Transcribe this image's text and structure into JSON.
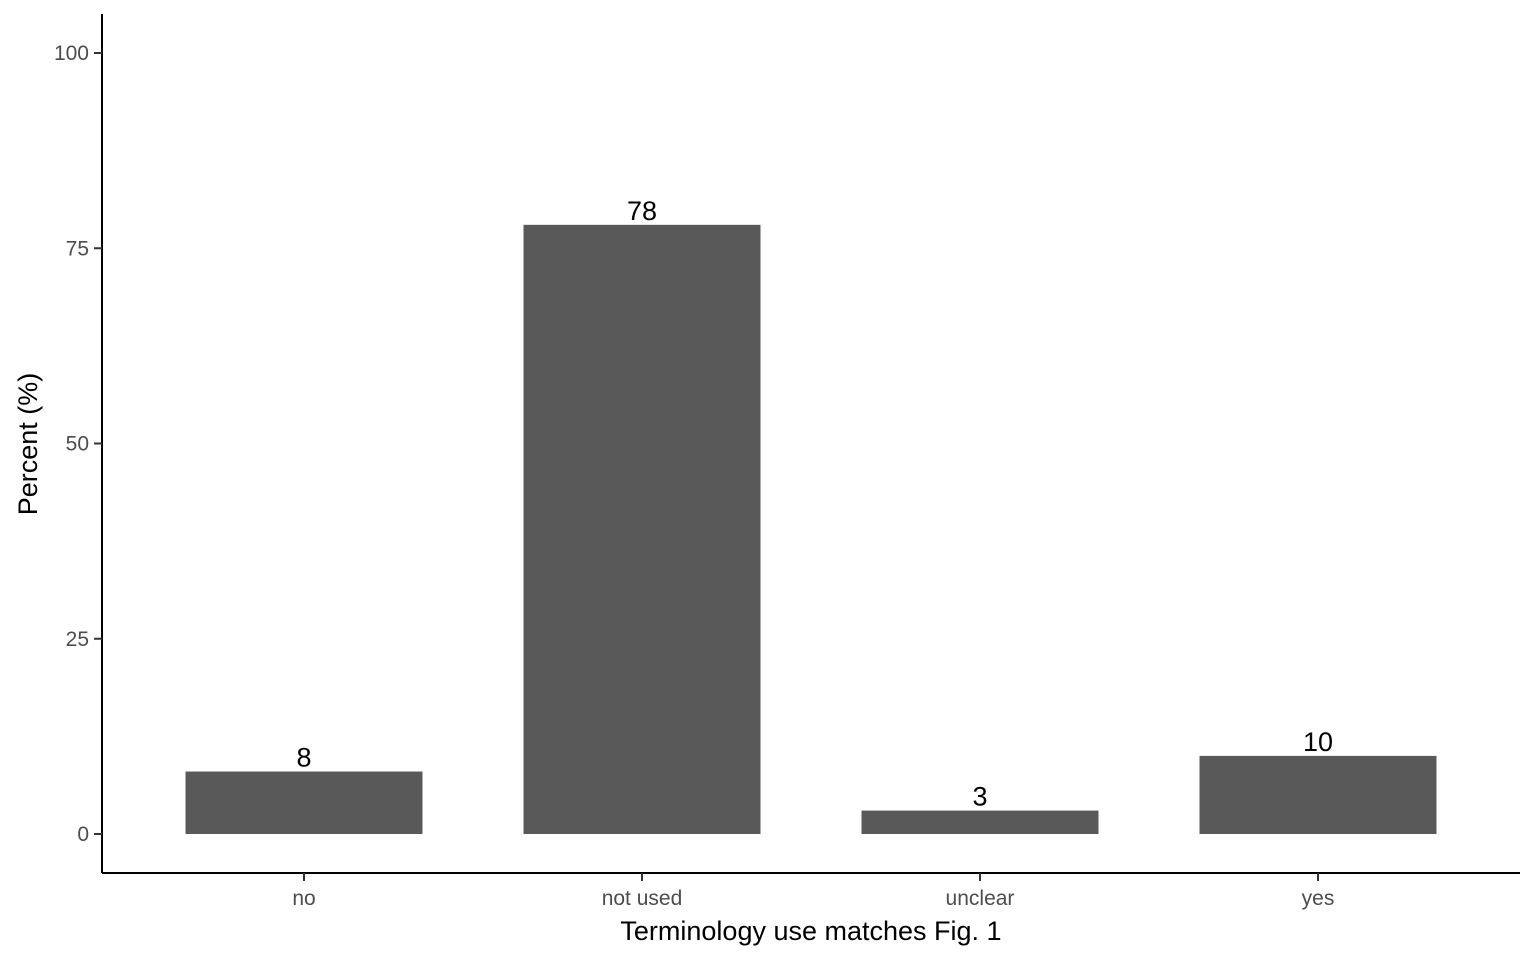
{
  "chart_data": {
    "type": "bar",
    "categories": [
      "no",
      "not used",
      "unclear",
      "yes"
    ],
    "values": [
      8,
      78,
      3,
      10
    ],
    "data_labels": [
      "8",
      "78",
      "3",
      "10"
    ],
    "xlabel": "Terminology use matches Fig. 1",
    "ylabel": "Percent (%)",
    "ylim": [
      0,
      100
    ],
    "yticks": [
      0,
      25,
      50,
      75,
      100
    ],
    "ytick_labels": [
      "0",
      "25",
      "50",
      "75",
      "100"
    ],
    "grid": false,
    "legend": "none",
    "bar_color": "#595959",
    "axis_color": "#000000",
    "tick_label_color": "#4d4d4d",
    "background": "#ffffff"
  }
}
